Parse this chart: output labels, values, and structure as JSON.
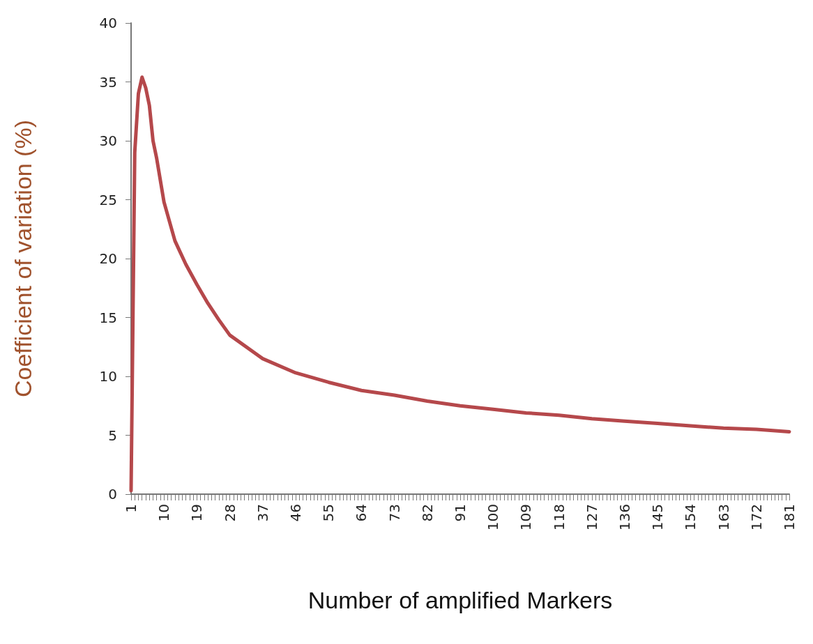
{
  "chart_data": {
    "type": "line",
    "xlabel": "Number of amplified Markers",
    "ylabel": "Coefficient of variation (%)",
    "x": [
      1,
      2,
      3,
      4,
      5,
      6,
      7,
      8,
      10,
      13,
      16,
      19,
      22,
      25,
      28,
      37,
      46,
      55,
      64,
      73,
      82,
      91,
      100,
      109,
      118,
      127,
      136,
      145,
      154,
      163,
      172,
      181
    ],
    "series": [
      {
        "color": "#b5484b",
        "values": [
          0.3,
          29,
          34,
          35.4,
          34.5,
          33,
          30,
          28.5,
          24.8,
          21.5,
          19.5,
          17.8,
          16.2,
          14.8,
          13.5,
          11.5,
          10.3,
          9.5,
          8.8,
          8.4,
          7.9,
          7.5,
          7.2,
          6.9,
          6.7,
          6.4,
          6.2,
          6.0,
          5.8,
          5.6,
          5.5,
          5.3
        ]
      }
    ],
    "xlim": [
      1,
      181
    ],
    "xticks": [
      1,
      10,
      19,
      28,
      37,
      46,
      55,
      64,
      73,
      82,
      91,
      100,
      109,
      118,
      127,
      136,
      145,
      154,
      163,
      172,
      181
    ],
    "ylim": [
      0,
      40
    ],
    "yticks": [
      0,
      5,
      10,
      15,
      20,
      25,
      30,
      35,
      40
    ],
    "grid": false,
    "marker": "none",
    "line_style": "solid"
  }
}
